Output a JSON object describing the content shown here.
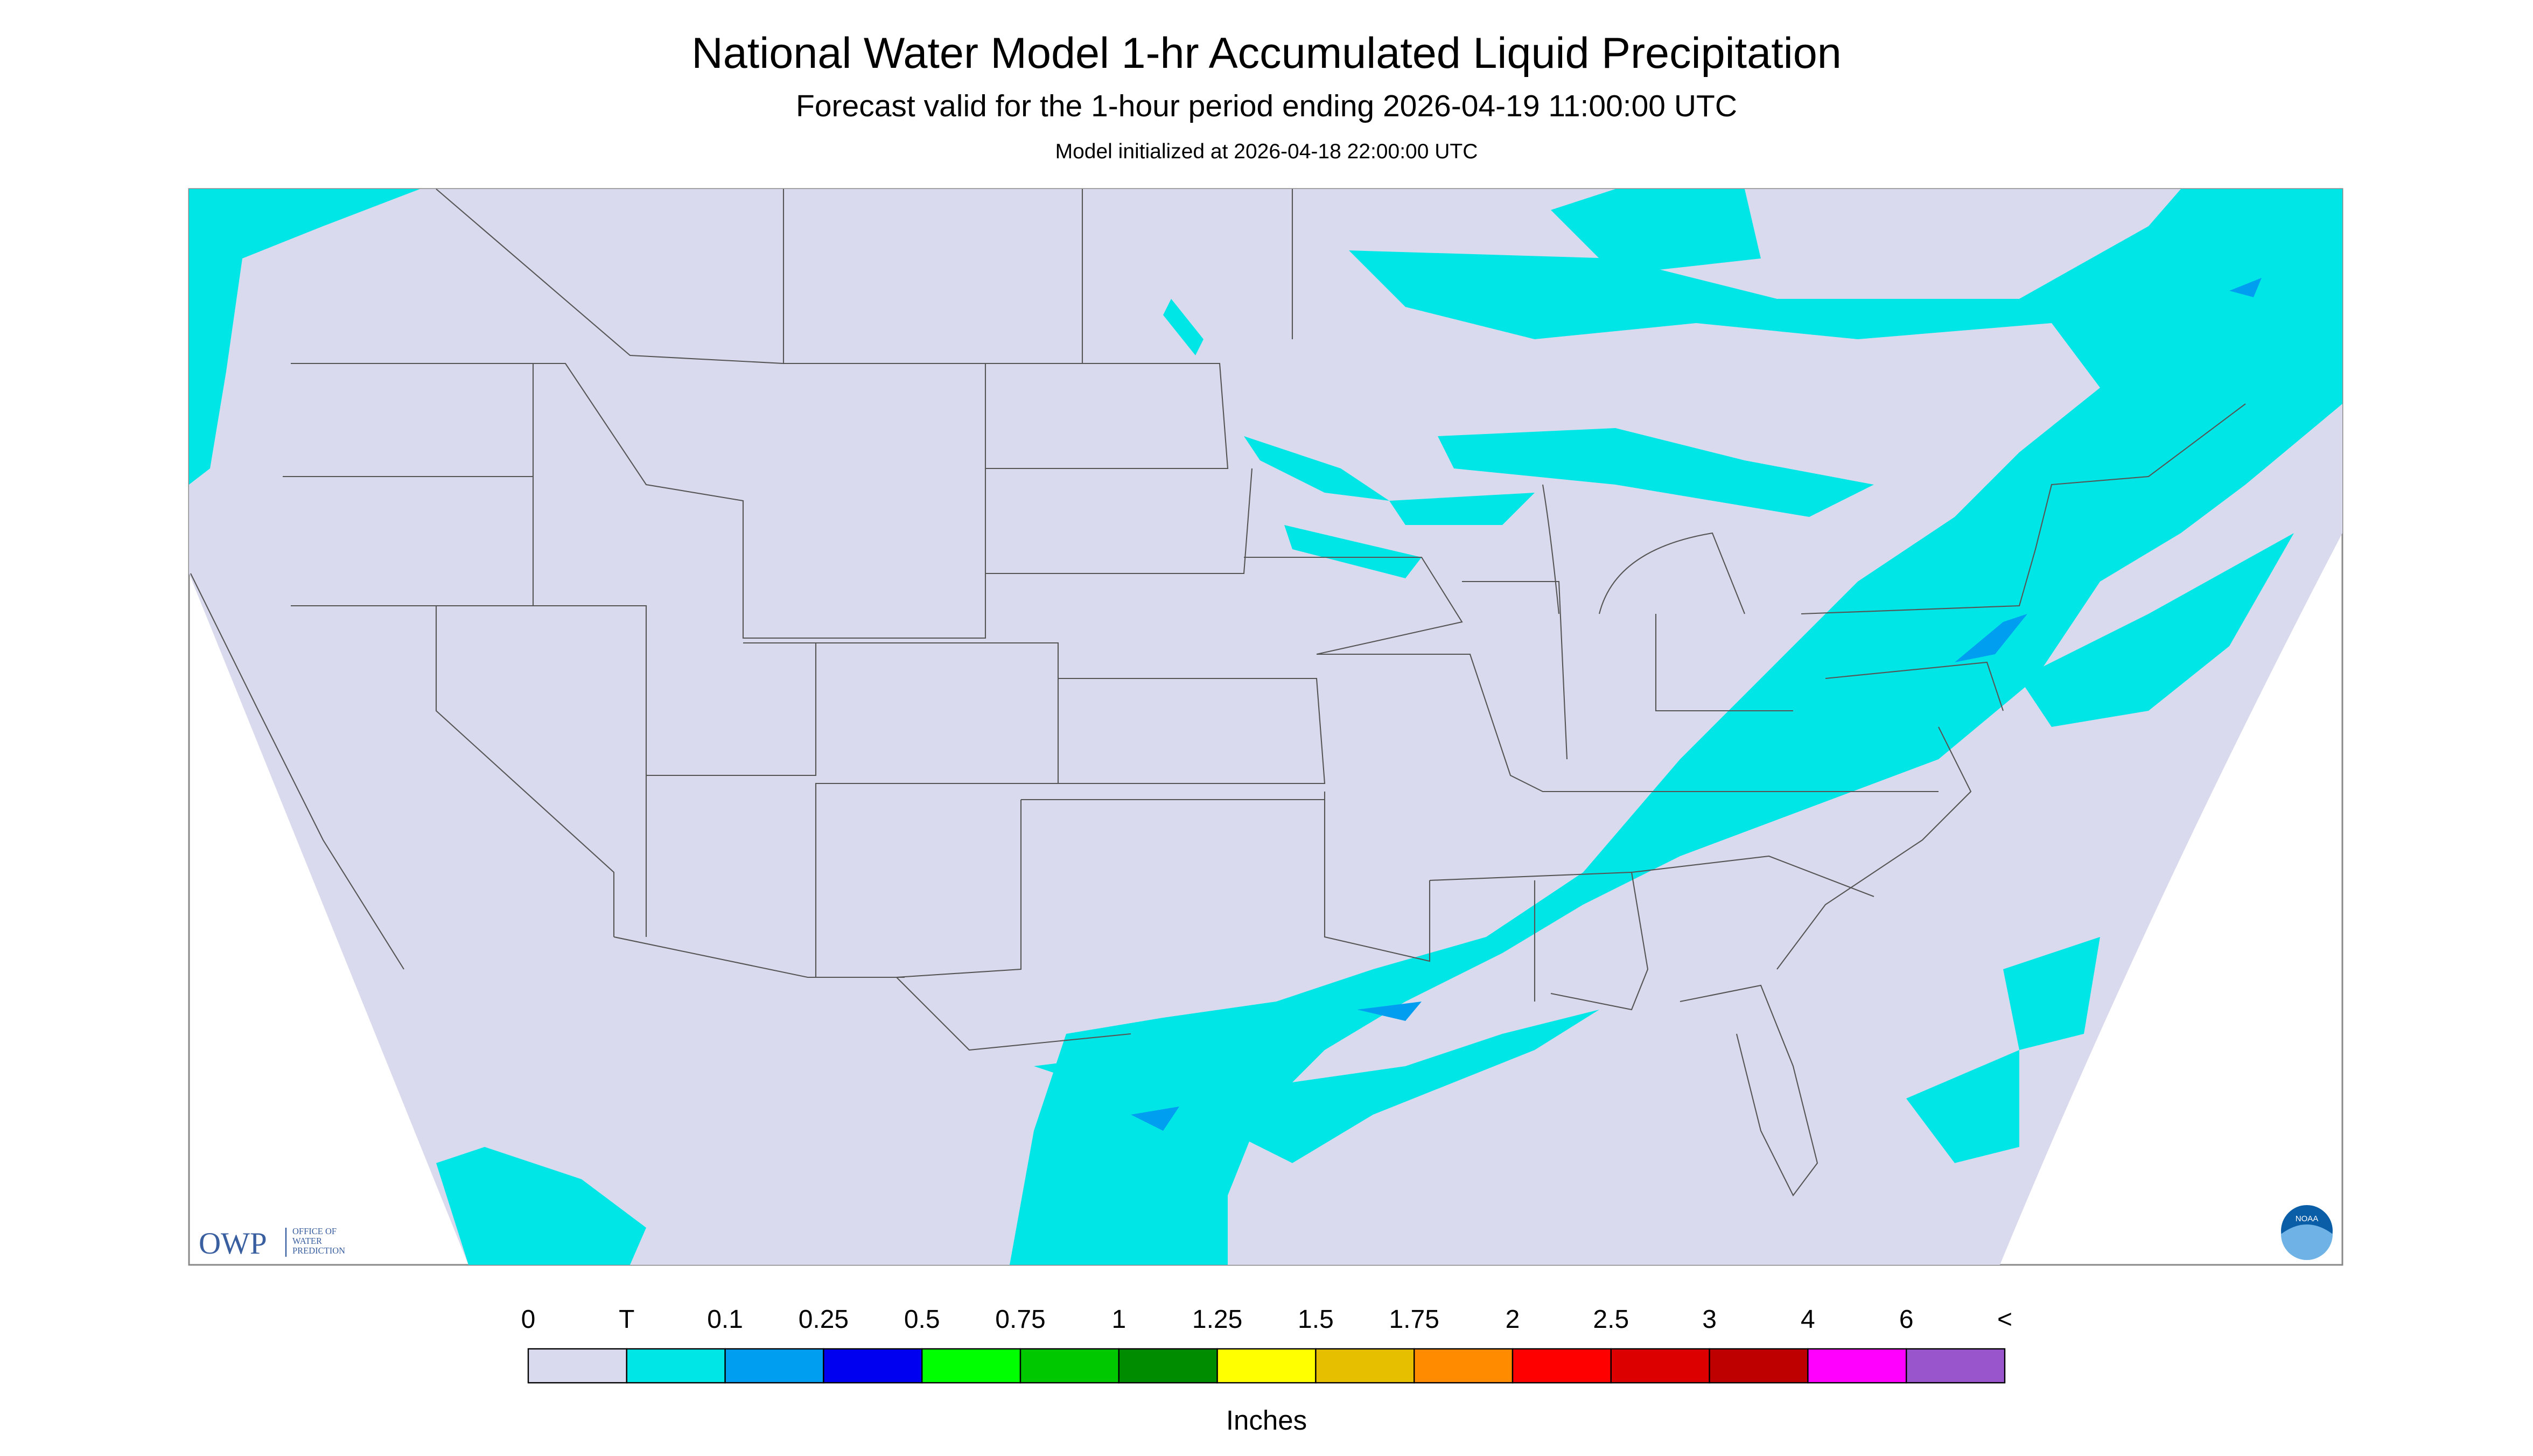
{
  "header": {
    "title": "National Water Model 1-hr Accumulated Liquid Precipitation",
    "subtitle": "Forecast valid for the 1-hour period ending 2026-04-19 11:00:00 UTC",
    "init": "Model initialized at 2026-04-18 22:00:00 UTC"
  },
  "logos": {
    "owp": "OWP",
    "owp_text": [
      "OFFICE OF",
      "WATER",
      "PREDICTION"
    ],
    "noaa": "NOAA"
  },
  "legend": {
    "labels": [
      "0",
      "T",
      "0.1",
      "0.25",
      "0.5",
      "0.75",
      "1",
      "1.25",
      "1.5",
      "1.75",
      "2",
      "2.5",
      "3",
      "4",
      "6",
      "<"
    ],
    "colors": [
      "#dadaee",
      "#00e6e6",
      "#009ef0",
      "#0000f0",
      "#00ff00",
      "#00c800",
      "#008c00",
      "#ffff00",
      "#e6c000",
      "#ff8c00",
      "#ff0000",
      "#dc0000",
      "#be0000",
      "#ff00ff",
      "#9955cc"
    ],
    "unit": "Inches"
  }
}
